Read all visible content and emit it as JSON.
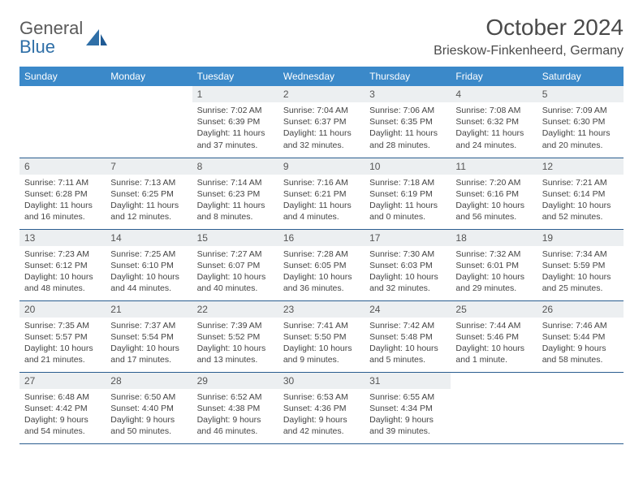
{
  "logo": {
    "gray": "General",
    "blue": "Blue"
  },
  "title": "October 2024",
  "location": "Brieskow-Finkenheerd, Germany",
  "colors": {
    "header_bg": "#3b89c9",
    "header_text": "#ffffff",
    "daynum_bg": "#eceff1",
    "border": "#2a5d8f",
    "logo_gray": "#5a5a5a",
    "logo_blue": "#2f6fa7"
  },
  "weekdays": [
    "Sunday",
    "Monday",
    "Tuesday",
    "Wednesday",
    "Thursday",
    "Friday",
    "Saturday"
  ],
  "leading_blanks": 2,
  "days": [
    {
      "n": 1,
      "sr": "7:02 AM",
      "ss": "6:39 PM",
      "dl": "11 hours and 37 minutes."
    },
    {
      "n": 2,
      "sr": "7:04 AM",
      "ss": "6:37 PM",
      "dl": "11 hours and 32 minutes."
    },
    {
      "n": 3,
      "sr": "7:06 AM",
      "ss": "6:35 PM",
      "dl": "11 hours and 28 minutes."
    },
    {
      "n": 4,
      "sr": "7:08 AM",
      "ss": "6:32 PM",
      "dl": "11 hours and 24 minutes."
    },
    {
      "n": 5,
      "sr": "7:09 AM",
      "ss": "6:30 PM",
      "dl": "11 hours and 20 minutes."
    },
    {
      "n": 6,
      "sr": "7:11 AM",
      "ss": "6:28 PM",
      "dl": "11 hours and 16 minutes."
    },
    {
      "n": 7,
      "sr": "7:13 AM",
      "ss": "6:25 PM",
      "dl": "11 hours and 12 minutes."
    },
    {
      "n": 8,
      "sr": "7:14 AM",
      "ss": "6:23 PM",
      "dl": "11 hours and 8 minutes."
    },
    {
      "n": 9,
      "sr": "7:16 AM",
      "ss": "6:21 PM",
      "dl": "11 hours and 4 minutes."
    },
    {
      "n": 10,
      "sr": "7:18 AM",
      "ss": "6:19 PM",
      "dl": "11 hours and 0 minutes."
    },
    {
      "n": 11,
      "sr": "7:20 AM",
      "ss": "6:16 PM",
      "dl": "10 hours and 56 minutes."
    },
    {
      "n": 12,
      "sr": "7:21 AM",
      "ss": "6:14 PM",
      "dl": "10 hours and 52 minutes."
    },
    {
      "n": 13,
      "sr": "7:23 AM",
      "ss": "6:12 PM",
      "dl": "10 hours and 48 minutes."
    },
    {
      "n": 14,
      "sr": "7:25 AM",
      "ss": "6:10 PM",
      "dl": "10 hours and 44 minutes."
    },
    {
      "n": 15,
      "sr": "7:27 AM",
      "ss": "6:07 PM",
      "dl": "10 hours and 40 minutes."
    },
    {
      "n": 16,
      "sr": "7:28 AM",
      "ss": "6:05 PM",
      "dl": "10 hours and 36 minutes."
    },
    {
      "n": 17,
      "sr": "7:30 AM",
      "ss": "6:03 PM",
      "dl": "10 hours and 32 minutes."
    },
    {
      "n": 18,
      "sr": "7:32 AM",
      "ss": "6:01 PM",
      "dl": "10 hours and 29 minutes."
    },
    {
      "n": 19,
      "sr": "7:34 AM",
      "ss": "5:59 PM",
      "dl": "10 hours and 25 minutes."
    },
    {
      "n": 20,
      "sr": "7:35 AM",
      "ss": "5:57 PM",
      "dl": "10 hours and 21 minutes."
    },
    {
      "n": 21,
      "sr": "7:37 AM",
      "ss": "5:54 PM",
      "dl": "10 hours and 17 minutes."
    },
    {
      "n": 22,
      "sr": "7:39 AM",
      "ss": "5:52 PM",
      "dl": "10 hours and 13 minutes."
    },
    {
      "n": 23,
      "sr": "7:41 AM",
      "ss": "5:50 PM",
      "dl": "10 hours and 9 minutes."
    },
    {
      "n": 24,
      "sr": "7:42 AM",
      "ss": "5:48 PM",
      "dl": "10 hours and 5 minutes."
    },
    {
      "n": 25,
      "sr": "7:44 AM",
      "ss": "5:46 PM",
      "dl": "10 hours and 1 minute."
    },
    {
      "n": 26,
      "sr": "7:46 AM",
      "ss": "5:44 PM",
      "dl": "9 hours and 58 minutes."
    },
    {
      "n": 27,
      "sr": "6:48 AM",
      "ss": "4:42 PM",
      "dl": "9 hours and 54 minutes."
    },
    {
      "n": 28,
      "sr": "6:50 AM",
      "ss": "4:40 PM",
      "dl": "9 hours and 50 minutes."
    },
    {
      "n": 29,
      "sr": "6:52 AM",
      "ss": "4:38 PM",
      "dl": "9 hours and 46 minutes."
    },
    {
      "n": 30,
      "sr": "6:53 AM",
      "ss": "4:36 PM",
      "dl": "9 hours and 42 minutes."
    },
    {
      "n": 31,
      "sr": "6:55 AM",
      "ss": "4:34 PM",
      "dl": "9 hours and 39 minutes."
    }
  ],
  "labels": {
    "sunrise": "Sunrise:",
    "sunset": "Sunset:",
    "daylight": "Daylight:"
  }
}
